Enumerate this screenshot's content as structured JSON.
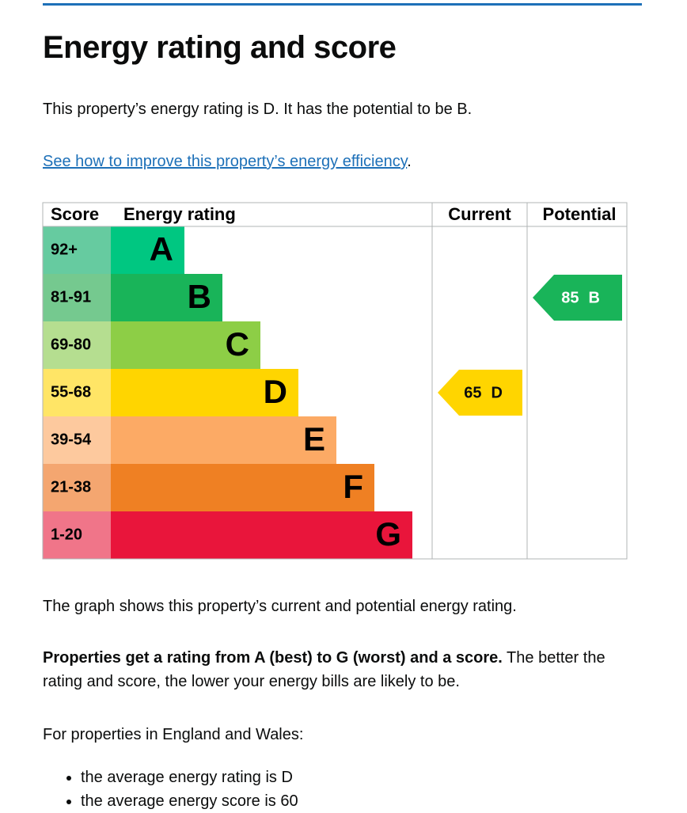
{
  "header": {
    "title": "Energy rating and score"
  },
  "intro": "This property’s energy rating is D. It has the potential to be B.",
  "link": {
    "text": "See how to improve this property’s energy efficiency",
    "suffix": "."
  },
  "graph": {
    "headers": [
      "Score",
      "Energy rating",
      "Current",
      "Potential"
    ],
    "rows": [
      {
        "score": "92+",
        "rating": "A",
        "bar_color": "#00c781",
        "score_color": "#66cba0"
      },
      {
        "score": "81-91",
        "rating": "B",
        "bar_color": "#19b459",
        "score_color": "#75c98f"
      },
      {
        "score": "69-80",
        "rating": "C",
        "bar_color": "#8dce46",
        "score_color": "#b5de90"
      },
      {
        "score": "55-68",
        "rating": "D",
        "bar_color": "#ffd500",
        "score_color": "#ffe566"
      },
      {
        "score": "39-54",
        "rating": "E",
        "bar_color": "#fcaa65",
        "score_color": "#fdc99e"
      },
      {
        "score": "21-38",
        "rating": "F",
        "bar_color": "#ef8023",
        "score_color": "#f4a670"
      },
      {
        "score": "1-20",
        "rating": "G",
        "bar_color": "#e9153b",
        "score_color": "#f07589"
      }
    ],
    "current": {
      "score": 65,
      "rating": "D",
      "color": "#ffd500"
    },
    "potential": {
      "score": 85,
      "rating": "B",
      "color": "#19b459"
    }
  },
  "body": {
    "graph_note": "The graph shows this property’s current and potential energy rating.",
    "properties_bold": "Properties get a rating from A (best) to G (worst) and a score.",
    "properties_rest": "The better the rating and score, the lower your energy bills are likely to be.",
    "region": "For properties in England and Wales:",
    "list": [
      "the average energy rating is D",
      "the average energy score is 60"
    ]
  }
}
